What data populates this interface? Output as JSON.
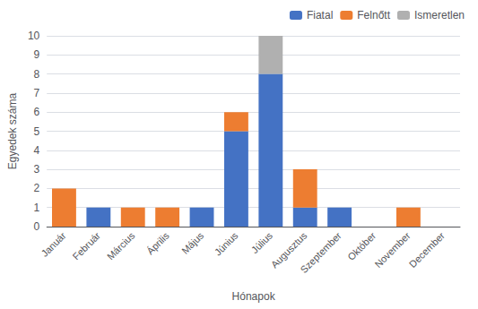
{
  "chart_data": {
    "type": "bar",
    "xlabel": "Hónapok",
    "ylabel": "Egyedek száma",
    "categories": [
      "Január",
      "Február",
      "Március",
      "Április",
      "Május",
      "Június",
      "Július",
      "Augusztus",
      "Szeptember",
      "Október",
      "November",
      "December"
    ],
    "series": [
      {
        "name": "Fiatal",
        "color": "#4472C4",
        "values": [
          0,
          1,
          0,
          0,
          1,
          5,
          8,
          1,
          1,
          0,
          0,
          0
        ]
      },
      {
        "name": "Felnőtt",
        "color": "#ED7D31",
        "values": [
          2,
          0,
          1,
          1,
          0,
          1,
          0,
          2,
          0,
          0,
          1,
          0
        ]
      },
      {
        "name": "Ismeretlen",
        "color": "#B0B0B0",
        "values": [
          0,
          0,
          0,
          0,
          0,
          0,
          2,
          0,
          0,
          0,
          0,
          0
        ]
      }
    ],
    "stacked": true,
    "ylim": [
      0,
      10
    ],
    "yticks": [
      0,
      1,
      2,
      3,
      4,
      5,
      6,
      7,
      8,
      9,
      10
    ],
    "grid": true,
    "legend": "upper right"
  }
}
